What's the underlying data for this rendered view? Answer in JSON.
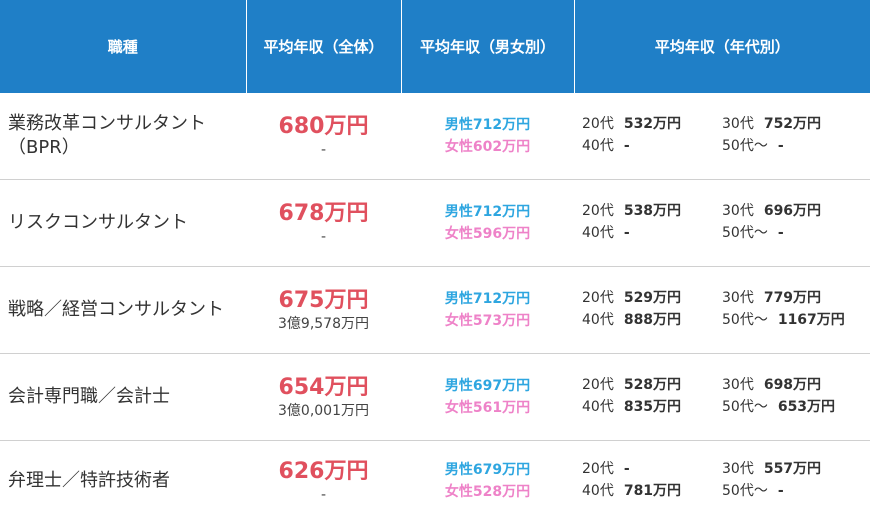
{
  "header": {
    "job": "職種",
    "avg_all": "平均年収（全体）",
    "avg_gender": "平均年収（男女別）",
    "avg_age": "平均年収（年代別）"
  },
  "colors": {
    "header_bg": "#1f7fc7",
    "salary": "#e0505e",
    "male": "#2ea6e0",
    "female": "#ee82c8"
  },
  "rows": [
    {
      "job_line1": "業務改革コンサルタント",
      "job_line2": "（BPR）",
      "avg": "680万円",
      "avg_sub": "-",
      "male": "男性712万円",
      "female": "女性602万円",
      "age20_label": "20代",
      "age20": "532万円",
      "age30_label": "30代",
      "age30": "752万円",
      "age40_label": "40代",
      "age40": "-",
      "age50_label": "50代〜",
      "age50": "-"
    },
    {
      "job_line1": "リスクコンサルタント",
      "job_line2": "",
      "avg": "678万円",
      "avg_sub": "-",
      "male": "男性712万円",
      "female": "女性596万円",
      "age20_label": "20代",
      "age20": "538万円",
      "age30_label": "30代",
      "age30": "696万円",
      "age40_label": "40代",
      "age40": "-",
      "age50_label": "50代〜",
      "age50": "-"
    },
    {
      "job_line1": "戦略／経営コンサルタント",
      "job_line2": "",
      "avg": "675万円",
      "avg_sub": "3億9,578万円",
      "male": "男性712万円",
      "female": "女性573万円",
      "age20_label": "20代",
      "age20": "529万円",
      "age30_label": "30代",
      "age30": "779万円",
      "age40_label": "40代",
      "age40": "888万円",
      "age50_label": "50代〜",
      "age50": "1167万円"
    },
    {
      "job_line1": "会計専門職／会計士",
      "job_line2": "",
      "avg": "654万円",
      "avg_sub": "3億0,001万円",
      "male": "男性697万円",
      "female": "女性561万円",
      "age20_label": "20代",
      "age20": "528万円",
      "age30_label": "30代",
      "age30": "698万円",
      "age40_label": "40代",
      "age40": "835万円",
      "age50_label": "50代〜",
      "age50": "653万円"
    },
    {
      "job_line1": "弁理士／特許技術者",
      "job_line2": "",
      "avg": "626万円",
      "avg_sub": "-",
      "male": "男性679万円",
      "female": "女性528万円",
      "age20_label": "20代",
      "age20": "-",
      "age30_label": "30代",
      "age30": "557万円",
      "age40_label": "40代",
      "age40": "781万円",
      "age50_label": "50代〜",
      "age50": "-"
    }
  ]
}
